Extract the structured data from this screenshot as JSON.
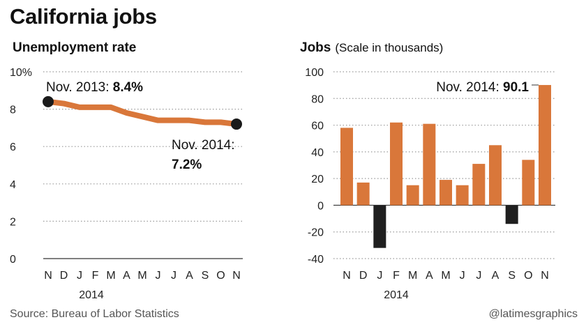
{
  "header": {
    "title": "California jobs",
    "left_subtitle": "Unemployment rate",
    "right_subtitle": "Jobs",
    "right_note": "(Scale in thousands)"
  },
  "footer": {
    "source": "Source: Bureau of Labor Statistics",
    "credit": "@latimesgraphics"
  },
  "chart_data": [
    {
      "type": "line",
      "title": "Unemployment rate",
      "categories": [
        "N",
        "D",
        "J",
        "F",
        "M",
        "A",
        "M",
        "J",
        "J",
        "A",
        "S",
        "O",
        "N"
      ],
      "year_label": "2014",
      "values": [
        8.4,
        8.3,
        8.1,
        8.1,
        8.1,
        7.8,
        7.6,
        7.4,
        7.4,
        7.4,
        7.3,
        7.3,
        7.2
      ],
      "ylim": [
        0,
        10
      ],
      "yticks": [
        {
          "value": 10,
          "label": "10%"
        },
        {
          "value": 8,
          "label": "8"
        },
        {
          "value": 6,
          "label": "6"
        },
        {
          "value": 4,
          "label": "4"
        },
        {
          "value": 2,
          "label": "2"
        },
        {
          "value": 0,
          "label": "0"
        }
      ],
      "grid": true,
      "line_color": "#d9773a",
      "marker_color": "#1a1a1a",
      "annotations": [
        {
          "text": "Nov. 2013: ",
          "bold": "8.4%"
        },
        {
          "text": "Nov. 2014:",
          "bold": "7.2%"
        }
      ]
    },
    {
      "type": "bar",
      "title": "Jobs",
      "categories": [
        "N",
        "D",
        "J",
        "F",
        "M",
        "A",
        "M",
        "J",
        "J",
        "A",
        "S",
        "O",
        "N"
      ],
      "year_label": "2014",
      "values": [
        58,
        17,
        -32,
        62,
        15,
        61,
        19,
        15,
        31,
        45,
        -14,
        34,
        90.1
      ],
      "ylim": [
        -40,
        100
      ],
      "yticks": [
        100,
        80,
        60,
        40,
        20,
        0,
        -20,
        -40
      ],
      "grid": true,
      "positive_color": "#d9773a",
      "negative_color": "#1f1f1f",
      "annotations": [
        {
          "text": "Nov. 2014: ",
          "bold": "90.1"
        }
      ]
    }
  ]
}
